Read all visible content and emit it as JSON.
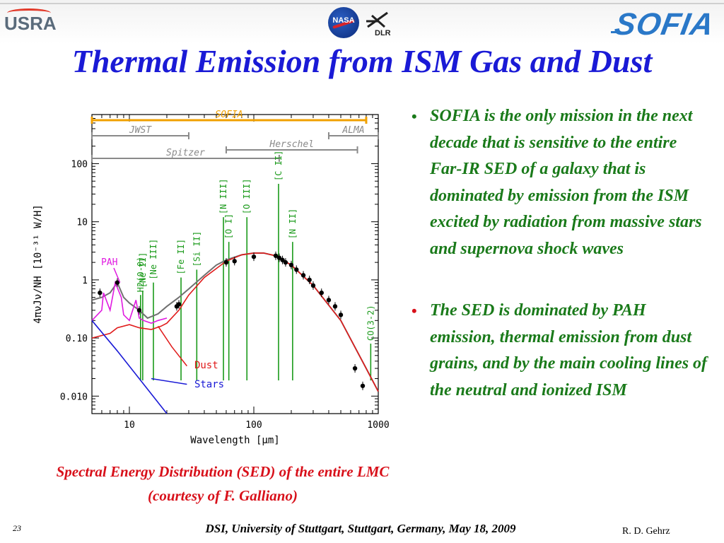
{
  "header": {
    "logos": {
      "usra": "USRA",
      "nasa": "NASA",
      "dlr": "DLR",
      "sofia": "SOFIA"
    },
    "title": "Thermal Emission from ISM Gas and Dust"
  },
  "chart_data": {
    "type": "line",
    "xscale": "log",
    "yscale": "log",
    "xlim": [
      5,
      1000
    ],
    "ylim": [
      0.005,
      700
    ],
    "xlabel": "Wavelength [μm]",
    "ylabel": "4πνJν/NH [10⁻³¹ W/H]",
    "x_ticks": [
      "10",
      "100",
      "1000"
    ],
    "y_ticks": [
      "0.010",
      "0.10",
      "1",
      "10",
      "100"
    ],
    "coverage_bars": [
      {
        "name": "SOFIA",
        "range": [
          5,
          800
        ]
      },
      {
        "name": "JWST",
        "range": [
          5,
          30
        ]
      },
      {
        "name": "ALMA",
        "range": [
          400,
          1000
        ]
      },
      {
        "name": "Herschel",
        "range": [
          60,
          680
        ]
      },
      {
        "name": "Spitzer",
        "range": [
          5,
          160
        ]
      }
    ],
    "line_labels": [
      "H2(0-0)",
      "[Ne II]",
      "[Ne III]",
      "[Fe II]",
      "[Si II]",
      "[N III]",
      "[O I]",
      "[O III]",
      "[C II]",
      "[N II]",
      "CO(3-2)"
    ],
    "lines_um": [
      12.3,
      12.8,
      15.6,
      26,
      34.8,
      57,
      63,
      88,
      158,
      205,
      870
    ],
    "annotations": [
      "PAH",
      "Dust",
      "Stars"
    ],
    "series": [
      {
        "name": "Total",
        "x": [
          5,
          6,
          7,
          8,
          9,
          10,
          12,
          14,
          17,
          20,
          25,
          30,
          40,
          50,
          60,
          80,
          100,
          120,
          150,
          200,
          300,
          500,
          800,
          1000
        ],
        "y": [
          0.45,
          0.5,
          0.6,
          0.9,
          0.5,
          0.4,
          0.3,
          0.22,
          0.26,
          0.35,
          0.5,
          0.7,
          1.2,
          1.8,
          2.2,
          2.7,
          2.9,
          2.9,
          2.6,
          1.8,
          0.8,
          0.2,
          0.03,
          0.012
        ]
      },
      {
        "name": "PAH",
        "x": [
          5,
          6,
          6.2,
          7,
          7.7,
          8.6,
          9,
          10,
          11.3,
          12,
          13,
          15,
          17,
          20
        ],
        "y": [
          0.2,
          0.3,
          0.6,
          0.3,
          0.9,
          0.5,
          0.25,
          0.2,
          0.45,
          0.22,
          0.2,
          0.18,
          0.2,
          0.22
        ]
      },
      {
        "name": "Dust",
        "x": [
          5,
          7,
          8,
          10,
          12,
          15,
          18,
          20,
          25,
          30,
          40,
          60,
          80,
          100,
          120,
          150,
          200,
          300,
          500,
          800,
          1000
        ],
        "y": [
          0.1,
          0.12,
          0.15,
          0.17,
          0.15,
          0.14,
          0.16,
          0.18,
          0.3,
          0.55,
          1.1,
          2.1,
          2.7,
          2.9,
          2.9,
          2.6,
          1.8,
          0.8,
          0.2,
          0.03,
          0.012
        ]
      },
      {
        "name": "Stars",
        "x": [
          5,
          8,
          12,
          20
        ],
        "y": [
          0.2,
          0.06,
          0.02,
          0.005
        ]
      },
      {
        "name": "data",
        "x": [
          5.8,
          8,
          12,
          24,
          25,
          60,
          70,
          100,
          150,
          160,
          170,
          180,
          200,
          220,
          250,
          280,
          300,
          350,
          400,
          450,
          500,
          650,
          750
        ],
        "y": [
          0.6,
          0.9,
          0.3,
          0.35,
          0.38,
          2.0,
          2.1,
          2.5,
          2.6,
          2.4,
          2.2,
          2.0,
          1.8,
          1.5,
          1.2,
          1.0,
          0.8,
          0.6,
          0.45,
          0.35,
          0.25,
          0.03,
          0.015
        ]
      }
    ]
  },
  "caption": "Spectral Energy Distribution (SED) of  the entire LMC (courtesy of F. Galliano)",
  "bullets": [
    "SOFIA is the only mission in the next decade that is sensitive to the entire Far-IR SED of a galaxy that is dominated by emission from the ISM excited by radiation from massive stars and supernova shock waves",
    "The SED is dominated by PAH emission, thermal emission from dust grains, and by the main cooling lines of the neutral and ionized ISM"
  ],
  "bullet_symbol": "•",
  "footer": {
    "slide_number": "23",
    "center": "DSI, University of Stuttgart, Stuttgart, Germany, May 18, 2009",
    "author": "R.  D. Gehrz"
  },
  "colors": {
    "title": "#1a1ad6",
    "bullet_text": "#1a7a1a",
    "caption": "#d8101a",
    "sofia_bar": "#f0a000",
    "coverage_bars": "#8a8a8a",
    "line_labels": "#1a9a1a",
    "pah": "#e01ae0",
    "dust": "#e01a1a",
    "stars": "#1a1ad6",
    "total": "#707070"
  }
}
